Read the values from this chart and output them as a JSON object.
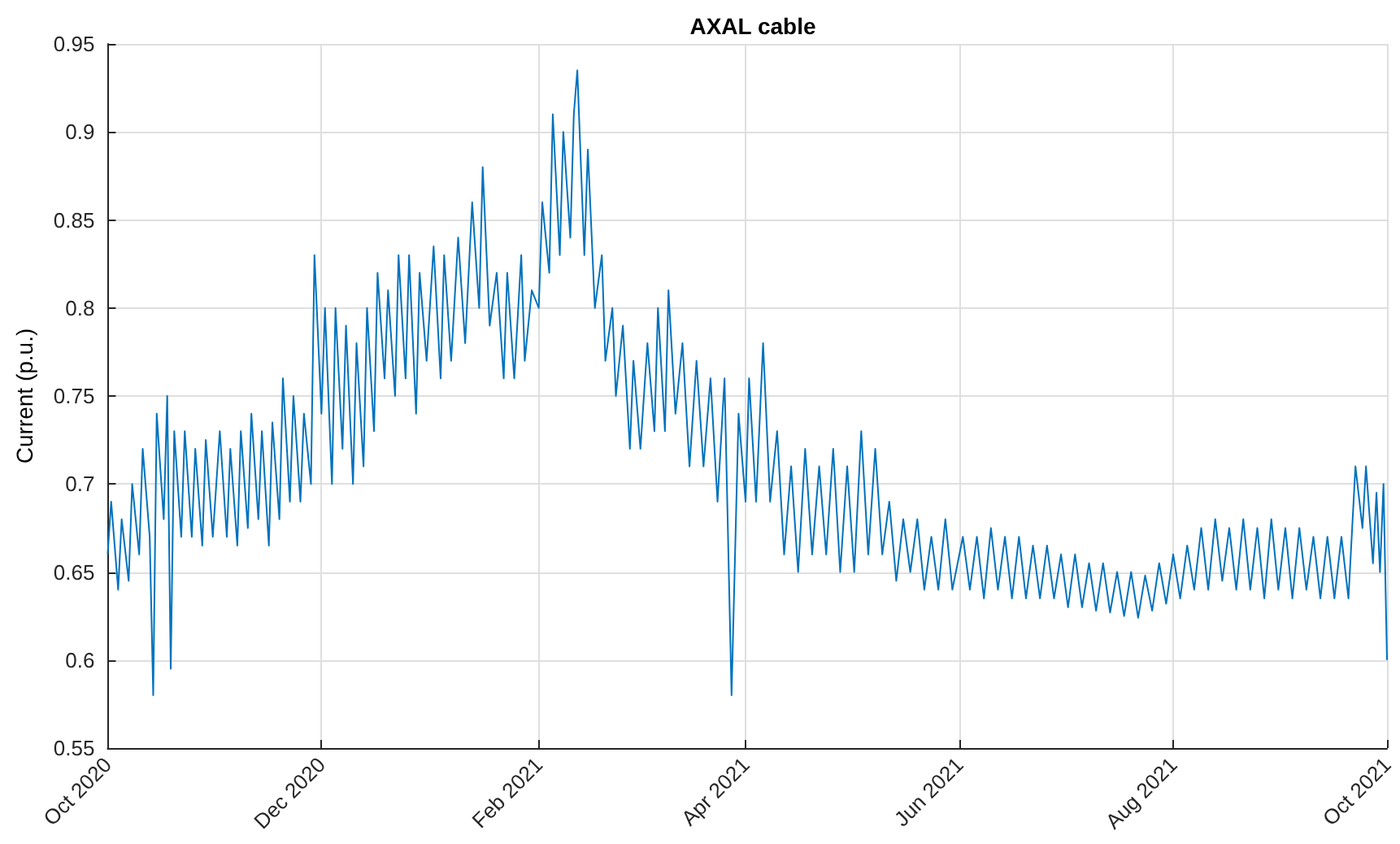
{
  "chart_data": {
    "type": "line",
    "title": "AXAL cable",
    "ylabel": "Current (p.u.)",
    "x": [
      "2020-10-01",
      "2020-10-02",
      "2020-10-04",
      "2020-10-05",
      "2020-10-07",
      "2020-10-08",
      "2020-10-10",
      "2020-10-11",
      "2020-10-13",
      "2020-10-14",
      "2020-10-15",
      "2020-10-17",
      "2020-10-18",
      "2020-10-19",
      "2020-10-20",
      "2020-10-22",
      "2020-10-23",
      "2020-10-25",
      "2020-10-26",
      "2020-10-28",
      "2020-10-29",
      "2020-10-31",
      "2020-11-02",
      "2020-11-04",
      "2020-11-05",
      "2020-11-07",
      "2020-11-08",
      "2020-11-10",
      "2020-11-11",
      "2020-11-13",
      "2020-11-14",
      "2020-11-16",
      "2020-11-17",
      "2020-11-19",
      "2020-11-20",
      "2020-11-22",
      "2020-11-23",
      "2020-11-25",
      "2020-11-26",
      "2020-11-28",
      "2020-11-29",
      "2020-12-01",
      "2020-12-02",
      "2020-12-04",
      "2020-12-05",
      "2020-12-07",
      "2020-12-08",
      "2020-12-10",
      "2020-12-11",
      "2020-12-13",
      "2020-12-14",
      "2020-12-16",
      "2020-12-17",
      "2020-12-19",
      "2020-12-20",
      "2020-12-22",
      "2020-12-23",
      "2020-12-25",
      "2020-12-26",
      "2020-12-28",
      "2020-12-29",
      "2020-12-31",
      "2021-01-02",
      "2021-01-04",
      "2021-01-05",
      "2021-01-07",
      "2021-01-09",
      "2021-01-11",
      "2021-01-13",
      "2021-01-15",
      "2021-01-16",
      "2021-01-18",
      "2021-01-20",
      "2021-01-22",
      "2021-01-23",
      "2021-01-25",
      "2021-01-27",
      "2021-01-28",
      "2021-01-30",
      "2021-02-01",
      "2021-02-02",
      "2021-02-04",
      "2021-02-05",
      "2021-02-07",
      "2021-02-08",
      "2021-02-10",
      "2021-02-11",
      "2021-02-12",
      "2021-02-14",
      "2021-02-15",
      "2021-02-17",
      "2021-02-19",
      "2021-02-20",
      "2021-02-22",
      "2021-02-23",
      "2021-02-25",
      "2021-02-27",
      "2021-02-28",
      "2021-03-02",
      "2021-03-04",
      "2021-03-06",
      "2021-03-07",
      "2021-03-09",
      "2021-03-10",
      "2021-03-12",
      "2021-03-14",
      "2021-03-16",
      "2021-03-18",
      "2021-03-20",
      "2021-03-22",
      "2021-03-24",
      "2021-03-26",
      "2021-03-28",
      "2021-03-30",
      "2021-04-01",
      "2021-04-02",
      "2021-04-04",
      "2021-04-06",
      "2021-04-08",
      "2021-04-10",
      "2021-04-12",
      "2021-04-14",
      "2021-04-16",
      "2021-04-18",
      "2021-04-20",
      "2021-04-22",
      "2021-04-24",
      "2021-04-26",
      "2021-04-28",
      "2021-04-30",
      "2021-05-02",
      "2021-05-04",
      "2021-05-06",
      "2021-05-08",
      "2021-05-10",
      "2021-05-12",
      "2021-05-14",
      "2021-05-16",
      "2021-05-18",
      "2021-05-20",
      "2021-05-22",
      "2021-05-24",
      "2021-05-26",
      "2021-05-28",
      "2021-05-30",
      "2021-06-02",
      "2021-06-04",
      "2021-06-06",
      "2021-06-08",
      "2021-06-10",
      "2021-06-12",
      "2021-06-14",
      "2021-06-16",
      "2021-06-18",
      "2021-06-20",
      "2021-06-22",
      "2021-06-24",
      "2021-06-26",
      "2021-06-28",
      "2021-06-30",
      "2021-07-02",
      "2021-07-04",
      "2021-07-06",
      "2021-07-08",
      "2021-07-10",
      "2021-07-12",
      "2021-07-14",
      "2021-07-16",
      "2021-07-18",
      "2021-07-20",
      "2021-07-22",
      "2021-07-24",
      "2021-07-26",
      "2021-07-28",
      "2021-07-30",
      "2021-08-01",
      "2021-08-03",
      "2021-08-05",
      "2021-08-07",
      "2021-08-09",
      "2021-08-11",
      "2021-08-13",
      "2021-08-15",
      "2021-08-17",
      "2021-08-19",
      "2021-08-21",
      "2021-08-23",
      "2021-08-25",
      "2021-08-27",
      "2021-08-29",
      "2021-08-31",
      "2021-09-02",
      "2021-09-04",
      "2021-09-06",
      "2021-09-08",
      "2021-09-10",
      "2021-09-12",
      "2021-09-14",
      "2021-09-16",
      "2021-09-18",
      "2021-09-20",
      "2021-09-22",
      "2021-09-24",
      "2021-09-25",
      "2021-09-27",
      "2021-09-28",
      "2021-09-29",
      "2021-09-30",
      "2021-10-01"
    ],
    "series": [
      {
        "color": "#0072bd",
        "values": [
          0.66,
          0.69,
          0.64,
          0.68,
          0.645,
          0.7,
          0.66,
          0.72,
          0.67,
          0.58,
          0.74,
          0.68,
          0.75,
          0.595,
          0.73,
          0.67,
          0.73,
          0.67,
          0.72,
          0.665,
          0.725,
          0.67,
          0.73,
          0.67,
          0.72,
          0.665,
          0.73,
          0.675,
          0.74,
          0.68,
          0.73,
          0.665,
          0.735,
          0.68,
          0.76,
          0.69,
          0.75,
          0.69,
          0.74,
          0.7,
          0.83,
          0.74,
          0.8,
          0.7,
          0.8,
          0.72,
          0.79,
          0.7,
          0.78,
          0.71,
          0.8,
          0.73,
          0.82,
          0.76,
          0.81,
          0.75,
          0.83,
          0.76,
          0.83,
          0.74,
          0.82,
          0.77,
          0.835,
          0.76,
          0.83,
          0.77,
          0.84,
          0.78,
          0.86,
          0.8,
          0.88,
          0.79,
          0.82,
          0.76,
          0.82,
          0.76,
          0.83,
          0.77,
          0.81,
          0.8,
          0.86,
          0.82,
          0.91,
          0.83,
          0.9,
          0.84,
          0.91,
          0.935,
          0.83,
          0.89,
          0.8,
          0.83,
          0.77,
          0.8,
          0.75,
          0.79,
          0.72,
          0.77,
          0.72,
          0.78,
          0.73,
          0.8,
          0.73,
          0.81,
          0.74,
          0.78,
          0.71,
          0.77,
          0.71,
          0.76,
          0.69,
          0.76,
          0.58,
          0.74,
          0.69,
          0.76,
          0.69,
          0.78,
          0.69,
          0.73,
          0.66,
          0.71,
          0.65,
          0.72,
          0.66,
          0.71,
          0.66,
          0.72,
          0.65,
          0.71,
          0.65,
          0.73,
          0.66,
          0.72,
          0.66,
          0.69,
          0.645,
          0.68,
          0.65,
          0.68,
          0.64,
          0.67,
          0.64,
          0.68,
          0.64,
          0.67,
          0.64,
          0.67,
          0.635,
          0.675,
          0.64,
          0.67,
          0.635,
          0.67,
          0.635,
          0.665,
          0.635,
          0.665,
          0.635,
          0.66,
          0.63,
          0.66,
          0.63,
          0.655,
          0.628,
          0.655,
          0.627,
          0.65,
          0.625,
          0.65,
          0.624,
          0.648,
          0.628,
          0.655,
          0.632,
          0.66,
          0.635,
          0.665,
          0.64,
          0.675,
          0.64,
          0.68,
          0.645,
          0.675,
          0.64,
          0.68,
          0.64,
          0.675,
          0.635,
          0.68,
          0.64,
          0.675,
          0.635,
          0.675,
          0.64,
          0.67,
          0.635,
          0.67,
          0.635,
          0.67,
          0.635,
          0.71,
          0.675,
          0.71,
          0.655,
          0.695,
          0.65,
          0.7,
          0.6
        ]
      }
    ],
    "xlim": [
      "2020-10-01",
      "2021-10-01"
    ],
    "xticks": [
      {
        "value": "2020-10-01",
        "label": "Oct 2020"
      },
      {
        "value": "2020-12-01",
        "label": "Dec 2020"
      },
      {
        "value": "2021-02-01",
        "label": "Feb 2021"
      },
      {
        "value": "2021-04-01",
        "label": "Apr 2021"
      },
      {
        "value": "2021-06-01",
        "label": "Jun 2021"
      },
      {
        "value": "2021-08-01",
        "label": "Aug 2021"
      },
      {
        "value": "2021-10-01",
        "label": "Oct 2021"
      }
    ],
    "ylim": [
      0.55,
      0.95
    ],
    "yticks": [
      0.55,
      0.6,
      0.65,
      0.7,
      0.75,
      0.8,
      0.85,
      0.9,
      0.95
    ],
    "grid": true,
    "marker": "none",
    "line_style": "solid"
  }
}
